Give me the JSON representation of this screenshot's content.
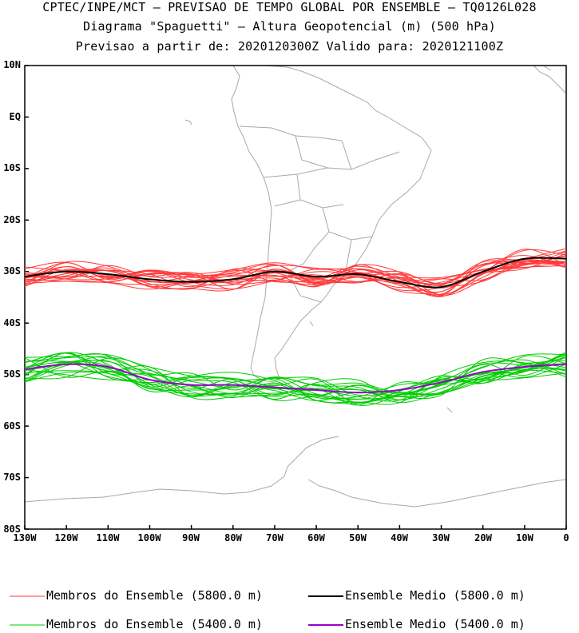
{
  "header": {
    "line1": "CPTEC/INPE/MCT – PREVISAO DE TEMPO GLOBAL POR ENSEMBLE – TQ0126L028",
    "line2": "Diagrama \"Spaguetti\" – Altura Geopotencial (m) (500 hPa)",
    "line3": "Previsao a partir de: 2020120300Z  Valido para: 2020121100Z"
  },
  "axes": {
    "lat_labels": [
      "10N",
      "EQ",
      "10S",
      "20S",
      "30S",
      "40S",
      "50S",
      "60S",
      "70S",
      "80S"
    ],
    "lon_labels": [
      "130W",
      "120W",
      "110W",
      "100W",
      "90W",
      "80W",
      "70W",
      "60W",
      "50W",
      "40W",
      "30W",
      "20W",
      "10W",
      "0"
    ]
  },
  "legend": {
    "red_members": "Membros do Ensemble (5800.0 m)",
    "black_mean": "Ensemble Medio (5800.0 m)",
    "green_members": "Membros do Ensemble (5400.0 m)",
    "purple_mean": "Ensemble Medio (5400.0 m)"
  },
  "colors": {
    "red": "#ff3a3a",
    "green": "#00cc00",
    "black": "#000000",
    "purple": "#9900cc",
    "coast": "#a8a8a8"
  },
  "chart_data": {
    "type": "line",
    "lon_range": [
      -130,
      0
    ],
    "lat_range": [
      -80,
      10
    ],
    "contour_5800_mean": {
      "lon": [
        -130,
        -120,
        -110,
        -100,
        -90,
        -80,
        -70,
        -60,
        -50,
        -40,
        -30,
        -20,
        -10,
        0
      ],
      "lat": [
        -31,
        -30,
        -30.5,
        -31.5,
        -32,
        -31.5,
        -30,
        -31,
        -30.5,
        -32,
        -33,
        -30,
        -27.5,
        -27.5
      ]
    },
    "contour_5400_mean": {
      "lon": [
        -130,
        -120,
        -110,
        -100,
        -90,
        -80,
        -70,
        -60,
        -50,
        -40,
        -30,
        -20,
        -10,
        0
      ],
      "lat": [
        -49,
        -48,
        -48.5,
        -51,
        -52,
        -52,
        -52.5,
        -53,
        -53.5,
        -53,
        -51.5,
        -49.5,
        -48.5,
        -48
      ]
    }
  }
}
